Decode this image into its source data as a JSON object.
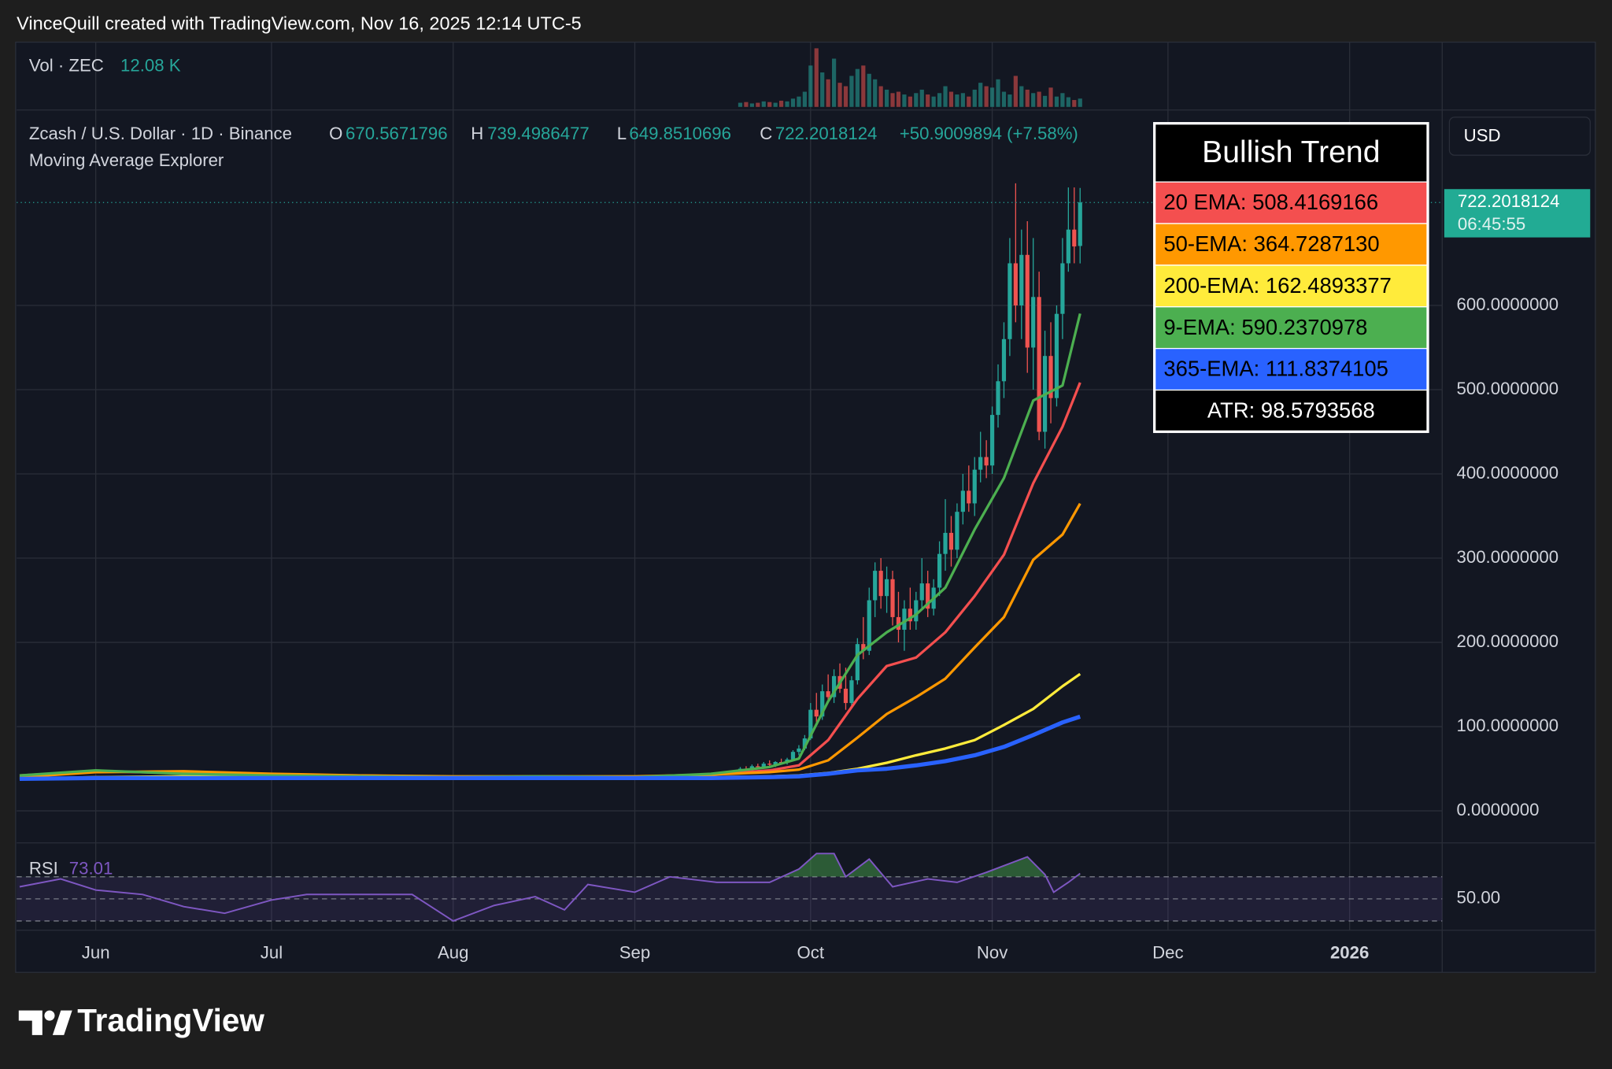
{
  "header": {
    "attribution": "VinceQuill created with TradingView.com, Nov 16, 2025 12:14 UTC-5"
  },
  "footer": {
    "logo_text": "TradingView"
  },
  "chart_data": [
    {
      "type": "candlestick",
      "title": "Zcash / U.S. Dollar · 1D · Binance",
      "subtitle": "Moving Average Explorer",
      "ohlc_labels": [
        "O",
        "H",
        "L",
        "C"
      ],
      "change": "+50.9009894 (+7.58%)",
      "currency": "USD",
      "countdown": "06:45:55",
      "up_color": "#26a69a",
      "down_color": "#ef5350",
      "candles": {
        "x": [
          110,
          111,
          112,
          113,
          114,
          115,
          116,
          117,
          118,
          119,
          120,
          121,
          122,
          123,
          124,
          125,
          126,
          127,
          128,
          129,
          130,
          131,
          132,
          133,
          134,
          135,
          136,
          137,
          138,
          139,
          140,
          141,
          142,
          143,
          144,
          145,
          146,
          147,
          148,
          149,
          150,
          151,
          152,
          153,
          154,
          155,
          156,
          157,
          158,
          159,
          160,
          161,
          162,
          163,
          164,
          165,
          166,
          167,
          168
        ],
        "open": [
          48,
          50,
          49,
          53,
          52,
          56,
          55,
          58,
          57,
          61,
          70,
          74,
          86,
          120,
          112,
          142,
          135,
          160,
          145,
          128,
          155,
          198,
          190,
          250,
          285,
          255,
          275,
          230,
          215,
          240,
          225,
          250,
          270,
          240,
          265,
          305,
          330,
          310,
          355,
          380,
          365,
          405,
          420,
          410,
          470,
          510,
          560,
          650,
          600,
          660,
          550,
          610,
          450,
          540,
          490,
          590,
          650,
          690,
          670.5671796
        ],
        "high": [
          52,
          53,
          55,
          56,
          58,
          60,
          59,
          62,
          63,
          72,
          78,
          90,
          128,
          140,
          150,
          162,
          168,
          175,
          170,
          160,
          205,
          230,
          265,
          295,
          300,
          290,
          285,
          260,
          250,
          265,
          260,
          300,
          285,
          275,
          320,
          370,
          350,
          365,
          400,
          410,
          420,
          450,
          440,
          480,
          530,
          580,
          680,
          745,
          690,
          700,
          680,
          640,
          570,
          580,
          600,
          680,
          740,
          740,
          739.4986477
        ],
        "low": [
          46,
          48,
          47,
          50,
          50,
          53,
          52,
          55,
          55,
          59,
          66,
          72,
          84,
          105,
          108,
          130,
          128,
          140,
          120,
          125,
          150,
          180,
          185,
          230,
          240,
          235,
          220,
          200,
          190,
          215,
          215,
          240,
          230,
          232,
          255,
          285,
          290,
          300,
          340,
          355,
          350,
          390,
          395,
          400,
          455,
          490,
          540,
          580,
          560,
          520,
          500,
          440,
          430,
          460,
          480,
          560,
          640,
          650,
          649.8510696
        ],
        "close": [
          50,
          49,
          53,
          52,
          56,
          55,
          58,
          57,
          61,
          70,
          74,
          86,
          120,
          112,
          142,
          135,
          160,
          145,
          128,
          155,
          198,
          190,
          250,
          285,
          255,
          275,
          230,
          215,
          240,
          225,
          250,
          270,
          240,
          265,
          305,
          330,
          310,
          355,
          380,
          365,
          405,
          420,
          410,
          470,
          510,
          560,
          650,
          600,
          660,
          550,
          610,
          450,
          540,
          490,
          590,
          650,
          690,
          670,
          722.2018124
        ]
      },
      "x": [
        -13,
        0,
        15,
        30,
        45,
        61,
        75,
        92,
        105,
        115,
        120,
        125,
        130,
        135,
        140,
        145,
        150,
        155,
        160,
        165,
        168
      ],
      "series": [
        {
          "color": "#f44f4f",
          "values": [
            42,
            47,
            45,
            43,
            42,
            40,
            41,
            40,
            43,
            48,
            54,
            84,
            133,
            172,
            182,
            212,
            255,
            304,
            389,
            456,
            508.4169166
          ]
        },
        {
          "color": "#ff9800",
          "values": [
            40,
            46,
            47,
            44,
            42,
            41,
            41,
            41,
            43,
            46,
            49,
            60,
            87,
            115,
            135,
            157,
            194,
            230,
            298,
            328,
            364.728713
          ]
        },
        {
          "color": "#ffeb3b",
          "values": [
            38,
            40,
            41,
            41,
            41,
            40,
            40,
            40,
            40,
            41,
            42,
            45,
            50,
            57,
            66,
            74,
            84,
            102,
            121,
            148,
            162.4893377
          ]
        },
        {
          "color": "#4caf50",
          "values": [
            42,
            48,
            44,
            42,
            41,
            40,
            41,
            40,
            44,
            52,
            62,
            130,
            185,
            212,
            233,
            265,
            334,
            395,
            487,
            505,
            590.2370978
          ]
        },
        {
          "color": "#2962ff",
          "values": [
            38,
            39,
            39,
            39,
            39,
            39,
            39,
            39,
            39,
            40,
            41,
            44,
            48,
            50,
            54,
            59,
            66,
            76,
            90,
            105,
            111.8374105
          ]
        }
      ],
      "xlim": [
        -13.5,
        229.8
      ],
      "xticks": [
        {
          "value": 0,
          "label": "Jun"
        },
        {
          "value": 30,
          "label": "Jul"
        },
        {
          "value": 61,
          "label": "Aug"
        },
        {
          "value": 92,
          "label": "Sep"
        },
        {
          "value": 122,
          "label": "Oct"
        },
        {
          "value": 153,
          "label": "Nov"
        },
        {
          "value": 183,
          "label": "Dec"
        },
        {
          "value": 214,
          "label": "2026"
        }
      ],
      "ylim": [
        -38,
        832
      ],
      "yticks": [
        {
          "value": 0,
          "label": "0.0000000"
        },
        {
          "value": 100,
          "label": "100.0000000"
        },
        {
          "value": 200,
          "label": "200.0000000"
        },
        {
          "value": 300,
          "label": "300.0000000"
        },
        {
          "value": 400,
          "label": "400.0000000"
        },
        {
          "value": 500,
          "label": "500.0000000"
        },
        {
          "value": 600,
          "label": "600.0000000"
        }
      ],
      "grid": true,
      "info_box": {
        "title": "Bullish Trend",
        "rows": [
          {
            "text": "20 EMA: 508.4169166",
            "color": "#f44f4f",
            "text_color": "#000000"
          },
          {
            "text": "50-EMA: 364.7287130",
            "color": "#ff9800",
            "text_color": "#000000"
          },
          {
            "text": "200-EMA: 162.4893377",
            "color": "#ffeb3b",
            "text_color": "#000000"
          },
          {
            "text": "9-EMA: 590.2370978",
            "color": "#4caf50",
            "text_color": "#000000"
          },
          {
            "text": "365-EMA: 111.8374105",
            "color": "#2962ff",
            "text_color": "#000000"
          },
          {
            "text": "ATR: 98.5793568",
            "color": "#000000",
            "text_color": "#ffffff",
            "align": "center"
          }
        ]
      }
    },
    {
      "type": "bar",
      "title": "Vol · ZEC",
      "x": [
        110,
        111,
        112,
        113,
        114,
        115,
        116,
        117,
        118,
        119,
        120,
        121,
        122,
        123,
        124,
        125,
        126,
        127,
        128,
        129,
        130,
        131,
        132,
        133,
        134,
        135,
        136,
        137,
        138,
        139,
        140,
        141,
        142,
        143,
        144,
        145,
        146,
        147,
        148,
        149,
        150,
        151,
        152,
        153,
        154,
        155,
        156,
        157,
        158,
        159,
        160,
        161,
        162,
        163,
        164,
        165,
        166,
        167,
        168
      ],
      "values": [
        6,
        7,
        5,
        6,
        8,
        7,
        6,
        9,
        8,
        12,
        15,
        22,
        60,
        85,
        50,
        40,
        70,
        35,
        30,
        45,
        55,
        60,
        48,
        40,
        30,
        25,
        20,
        22,
        18,
        15,
        20,
        25,
        18,
        15,
        20,
        30,
        22,
        18,
        20,
        15,
        25,
        35,
        30,
        28,
        40,
        22,
        18,
        45,
        30,
        25,
        20,
        22,
        16,
        28,
        15,
        20,
        14,
        10,
        12.08
      ],
      "value_label": "12.08 K",
      "xlim": [
        -13.5,
        229.8
      ]
    },
    {
      "type": "line",
      "title": "RSI",
      "color": "#7e57c2",
      "x": [
        -13,
        -6,
        0,
        8,
        15,
        22,
        30,
        36,
        45,
        54,
        61,
        68,
        75,
        80,
        84,
        92,
        98,
        106,
        115,
        120,
        123,
        126,
        128,
        132,
        136,
        142,
        147,
        152,
        159,
        162,
        163.5,
        166,
        168
      ],
      "values": [
        61,
        68,
        58,
        54,
        43,
        37,
        49,
        54,
        54,
        54,
        30,
        44,
        52,
        40,
        63,
        56,
        70,
        65,
        65,
        77,
        91,
        91,
        70,
        86,
        61,
        68,
        65,
        74,
        88,
        72,
        56,
        65,
        73.01
      ],
      "xlim": [
        -13.5,
        229.8
      ],
      "ylim": [
        21.6,
        100.7
      ],
      "yticks": [
        {
          "value": 50,
          "label": "50.00"
        }
      ],
      "levels": [
        70,
        50,
        30
      ]
    }
  ]
}
